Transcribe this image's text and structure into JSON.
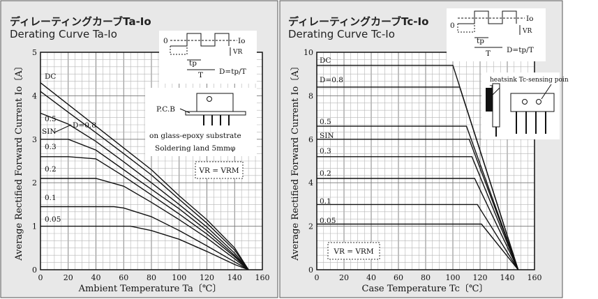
{
  "chart_data": [
    {
      "type": "line",
      "title": "ディレーティングカーブTa-Io",
      "subtitle": "Derating Curve Ta-Io",
      "xlabel": "Ambient Temperature Ta〔℃〕",
      "ylabel": "Average Rectified Forward Current Io〔A〕",
      "xlim": [
        0,
        160
      ],
      "ylim": [
        0,
        5
      ],
      "xticks": [
        "0",
        "20",
        "40",
        "60",
        "80",
        "100",
        "120",
        "140",
        "160"
      ],
      "yticks": [
        "0",
        "1",
        "2",
        "3",
        "4",
        "5"
      ],
      "grid": true,
      "series": [
        {
          "name": "DC",
          "x": [
            0,
            20,
            40,
            60,
            80,
            100,
            120,
            140,
            150
          ],
          "y": [
            4.3,
            3.8,
            3.3,
            2.8,
            2.3,
            1.7,
            1.15,
            0.5,
            0
          ]
        },
        {
          "name": "D=0.8",
          "x": [
            0,
            20,
            40,
            60,
            80,
            100,
            120,
            140,
            150
          ],
          "y": [
            4.1,
            3.62,
            3.15,
            2.67,
            2.18,
            1.62,
            1.07,
            0.45,
            0
          ]
        },
        {
          "name": "0.5",
          "x": [
            0,
            20,
            40,
            60,
            80,
            100,
            120,
            140,
            150
          ],
          "y": [
            3.6,
            3.35,
            2.95,
            2.48,
            2.0,
            1.5,
            0.98,
            0.38,
            0
          ]
        },
        {
          "name": "SIN",
          "x": [
            0,
            20,
            40,
            60,
            80,
            100,
            120,
            140,
            150
          ],
          "y": [
            3.0,
            3.0,
            2.75,
            2.3,
            1.85,
            1.4,
            0.9,
            0.33,
            0
          ]
        },
        {
          "name": "0.3",
          "x": [
            0,
            20,
            40,
            60,
            80,
            100,
            120,
            140,
            150
          ],
          "y": [
            2.6,
            2.6,
            2.55,
            2.15,
            1.72,
            1.28,
            0.82,
            0.3,
            0
          ]
        },
        {
          "name": "0.2",
          "x": [
            0,
            20,
            40,
            60,
            80,
            100,
            120,
            140,
            150
          ],
          "y": [
            2.1,
            2.1,
            2.1,
            1.92,
            1.55,
            1.15,
            0.73,
            0.25,
            0
          ]
        },
        {
          "name": "0.1",
          "x": [
            0,
            20,
            40,
            53,
            60,
            80,
            100,
            120,
            140,
            150
          ],
          "y": [
            1.45,
            1.45,
            1.45,
            1.45,
            1.42,
            1.22,
            0.9,
            0.55,
            0.18,
            0
          ]
        },
        {
          "name": "0.05",
          "x": [
            0,
            20,
            40,
            60,
            65,
            80,
            100,
            120,
            140,
            150
          ],
          "y": [
            1.0,
            1.0,
            1.0,
            1.0,
            1.0,
            0.9,
            0.7,
            0.42,
            0.12,
            0
          ]
        }
      ],
      "annotations": {
        "d_label": "D=0.8",
        "pcb_label": "P.C.B",
        "substrate_line1": "on glass-epoxy substrate",
        "substrate_line2": "Soldering land 5mmφ",
        "condition": "VR = VRM",
        "wave_io": "Io",
        "wave_zero": "0",
        "wave_vr": "VR",
        "wave_tp": "tp",
        "wave_t": "T",
        "wave_formula": "D=tp/T"
      }
    },
    {
      "type": "line",
      "title": "ディレーティングカーブTc-Io",
      "subtitle": "Derating Curve Tc-Io",
      "xlabel": "Case Temperature Tc〔℃〕",
      "ylabel": "Average Rectified Forward Current Io〔A〕",
      "xlim": [
        0,
        160
      ],
      "ylim": [
        0,
        10
      ],
      "xticks": [
        "0",
        "20",
        "40",
        "60",
        "80",
        "100",
        "120",
        "140",
        "160"
      ],
      "yticks": [
        "0",
        "2",
        "4",
        "6",
        "8",
        "10"
      ],
      "grid": true,
      "series": [
        {
          "name": "DC",
          "x": [
            0,
            100,
            148
          ],
          "y": [
            9.4,
            9.4,
            0
          ]
        },
        {
          "name": "D=0.8",
          "x": [
            0,
            105,
            148
          ],
          "y": [
            8.4,
            8.4,
            0
          ]
        },
        {
          "name": "0.5",
          "x": [
            0,
            110,
            148
          ],
          "y": [
            6.6,
            6.6,
            0
          ]
        },
        {
          "name": "SIN",
          "x": [
            0,
            112,
            148
          ],
          "y": [
            6.0,
            6.0,
            0
          ]
        },
        {
          "name": "0.3",
          "x": [
            0,
            114,
            148
          ],
          "y": [
            5.2,
            5.2,
            0
          ]
        },
        {
          "name": "0.2",
          "x": [
            0,
            116,
            148
          ],
          "y": [
            4.2,
            4.2,
            0
          ]
        },
        {
          "name": "0.1",
          "x": [
            0,
            118,
            148
          ],
          "y": [
            3.0,
            3.0,
            0
          ]
        },
        {
          "name": "0.05",
          "x": [
            0,
            121,
            148
          ],
          "y": [
            2.1,
            2.1,
            0
          ]
        }
      ],
      "annotations": {
        "heatsink": "heatsink Tc-sensing poin",
        "tc": "Tc",
        "condition": "VR = VRM",
        "wave_io": "Io",
        "wave_zero": "0",
        "wave_vr": "VR",
        "wave_tp": "tp",
        "wave_t": "T",
        "wave_formula": "D=tp/T"
      }
    }
  ]
}
